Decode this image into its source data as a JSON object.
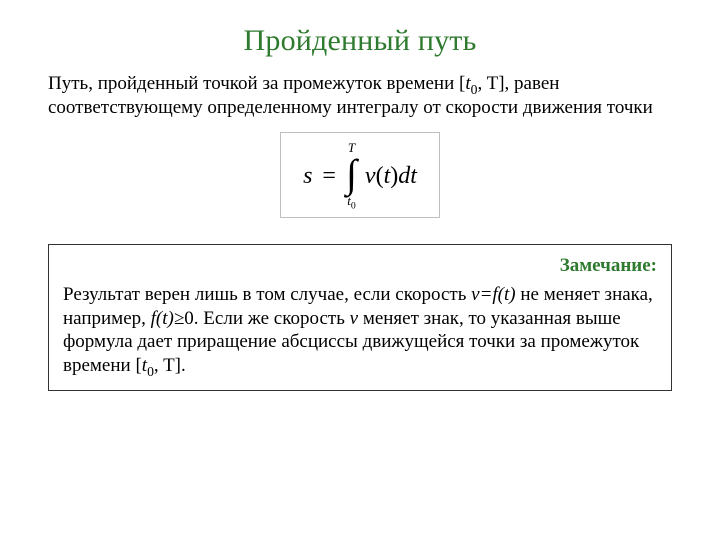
{
  "colors": {
    "title_color": "#2e7a2e",
    "body_text_color": "#000000",
    "formula_border": "#bfbfbf",
    "note_border": "#333333",
    "note_label_color": "#2e7a2e",
    "background": "#ffffff"
  },
  "typography": {
    "title_fontsize_pt": 22,
    "body_fontsize_pt": 14,
    "formula_fontsize_pt": 18,
    "font_family": "Times New Roman"
  },
  "title": "Пройденный путь",
  "paragraph": {
    "pre": "Путь, пройденный точкой за промежуток времени [",
    "t": "t",
    "t_sub": "0",
    "mid": ", T], равен соответствующему определенному интегралу от скорости движения точки"
  },
  "formula": {
    "lhs": "s",
    "equals": "=",
    "upper_limit": "T",
    "lower_limit_var": "t",
    "lower_limit_sub": "0",
    "integral_symbol": "∫",
    "func": "v",
    "arg_open": "(",
    "arg": "t",
    "arg_close": ")",
    "d": "d",
    "dvar": "t"
  },
  "note": {
    "label": "Замечание:",
    "seg1": "Результат верен лишь в том случае, если скорость ",
    "vfeq": "v=f(t)",
    "seg2": " не меняет знака, например, ",
    "ft_ge0": "f(t)≥",
    "zero_after": "0. Если же скорость ",
    "v_alone": "v",
    "seg3": " меняет знак, то указанная выше формула дает приращение абсциссы движущейся точки за промежуток времени [",
    "t": "t",
    "t_sub": "0",
    "seg4": ", T]."
  }
}
